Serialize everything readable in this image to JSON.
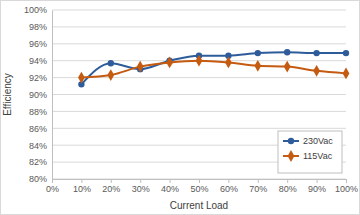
{
  "chart_data": {
    "type": "line",
    "x_label": "Current Load",
    "y_label": "Efficiency",
    "x": [
      10,
      20,
      30,
      40,
      50,
      60,
      70,
      80,
      90,
      100
    ],
    "series": [
      {
        "name": "230Vac",
        "color": "#2e5c9a",
        "marker": "circle",
        "line_style": "smooth",
        "values": [
          91.2,
          93.7,
          93.0,
          94.0,
          94.6,
          94.6,
          94.9,
          95.0,
          94.9,
          94.9
        ]
      },
      {
        "name": "115Vac",
        "color": "#c55a11",
        "marker": "diamond",
        "line_style": "smooth",
        "values": [
          92.0,
          92.3,
          93.3,
          93.8,
          94.0,
          93.8,
          93.4,
          93.3,
          92.8,
          92.5
        ]
      }
    ],
    "xlim": [
      0,
      100
    ],
    "xticks": [
      {
        "value": 0,
        "label": "0%"
      },
      {
        "value": 10,
        "label": "10%"
      },
      {
        "value": 20,
        "label": "20%"
      },
      {
        "value": 30,
        "label": "30%"
      },
      {
        "value": 40,
        "label": "40%"
      },
      {
        "value": 50,
        "label": "50%"
      },
      {
        "value": 60,
        "label": "60%"
      },
      {
        "value": 70,
        "label": "70%"
      },
      {
        "value": 80,
        "label": "80%"
      },
      {
        "value": 90,
        "label": "90%"
      },
      {
        "value": 100,
        "label": "100%"
      }
    ],
    "ylim": [
      80,
      100
    ],
    "yticks": [
      {
        "value": 80,
        "label": "80%"
      },
      {
        "value": 82,
        "label": "82%"
      },
      {
        "value": 84,
        "label": "84%"
      },
      {
        "value": 86,
        "label": "86%"
      },
      {
        "value": 88,
        "label": "88%"
      },
      {
        "value": 90,
        "label": "90%"
      },
      {
        "value": 92,
        "label": "92%"
      },
      {
        "value": 94,
        "label": "94%"
      },
      {
        "value": 96,
        "label": "96%"
      },
      {
        "value": 98,
        "label": "98%"
      },
      {
        "value": 100,
        "label": "100%"
      }
    ],
    "grid": true,
    "legend": "right"
  }
}
